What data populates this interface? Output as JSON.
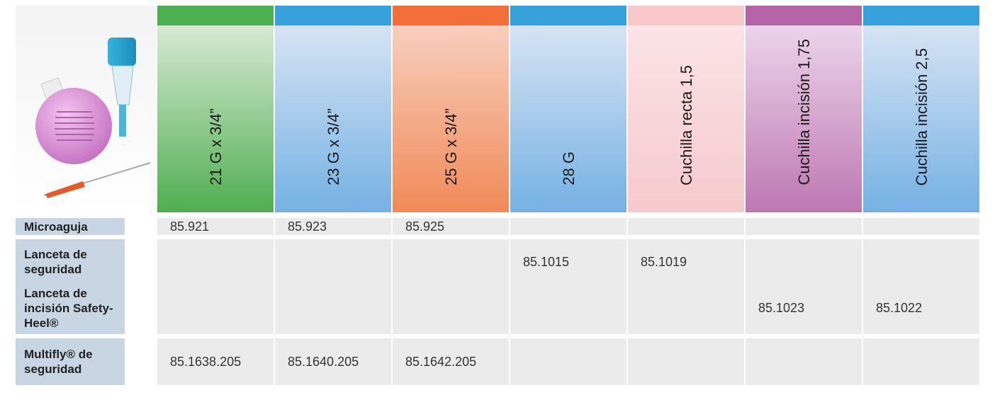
{
  "table": {
    "columns": [
      {
        "label": "21 G x 3/4”"
      },
      {
        "label": "23 G x 3/4”"
      },
      {
        "label": "25 G x 3/4”"
      },
      {
        "label": "28 G"
      },
      {
        "label": "Cuchilla recta 1,5"
      },
      {
        "label": "Cuchilla incisión 1,75"
      },
      {
        "label": "Cuchilla incisión 2,5"
      }
    ],
    "rows": [
      {
        "label": "Microaguja",
        "cells": [
          "85.921",
          "85.923",
          "85.925",
          null,
          null,
          null,
          null
        ]
      },
      {
        "label": "Lanceta de seguridad",
        "cells": [
          null,
          null,
          null,
          "85.1015",
          "85.1019",
          null,
          null
        ]
      },
      {
        "label": "Lanceta de incisión Safety-Heel®",
        "cells": [
          null,
          null,
          null,
          null,
          null,
          "85.1023",
          "85.1022"
        ]
      },
      {
        "label": "Multifly® de seguridad",
        "cells": [
          "85.1638.205",
          "85.1640.205",
          "85.1642.205",
          null,
          null,
          null,
          null
        ]
      }
    ]
  }
}
